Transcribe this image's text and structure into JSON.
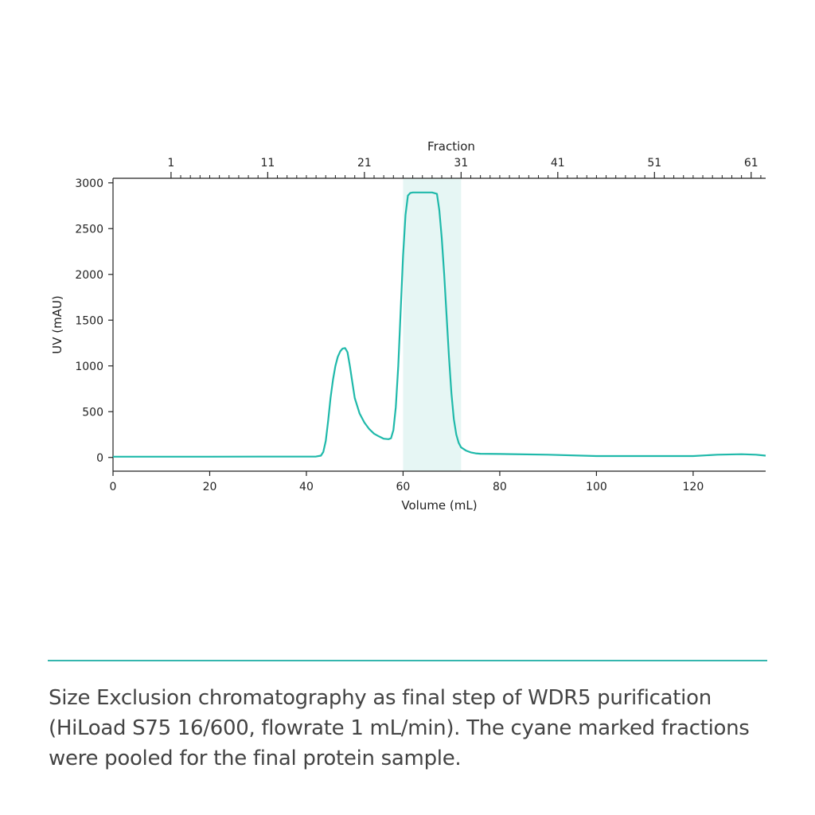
{
  "chart_data": {
    "type": "line",
    "xlabel": "Volume (mL)",
    "ylabel": "UV (mAU)",
    "top_axis_label": "Fraction",
    "xlim": [
      0,
      135
    ],
    "ylim": [
      -150,
      3050
    ],
    "x_ticks": [
      0,
      20,
      40,
      60,
      80,
      100,
      120
    ],
    "y_ticks": [
      0,
      500,
      1000,
      1500,
      2000,
      2500,
      3000
    ],
    "fraction_ticks": [
      {
        "label": "1",
        "volume": 12
      },
      {
        "label": "11",
        "volume": 32
      },
      {
        "label": "21",
        "volume": 52
      },
      {
        "label": "31",
        "volume": 72
      },
      {
        "label": "41",
        "volume": 92
      },
      {
        "label": "51",
        "volume": 112
      },
      {
        "label": "61",
        "volume": 132
      }
    ],
    "fraction_volume_mL": 2,
    "pooled_region": [
      60,
      72
    ],
    "grid": false,
    "colors": {
      "line": "#1fb9aa",
      "pooled": "#e6f6f4",
      "axes": "#222222"
    },
    "series": [
      {
        "x": [
          0,
          10,
          20,
          30,
          40,
          42,
          43,
          43.5,
          44,
          44.5,
          45,
          45.5,
          46,
          46.5,
          47,
          47.5,
          48,
          48.5,
          49,
          49.5,
          50,
          51,
          52,
          53,
          54,
          55,
          56,
          57,
          57.5,
          58,
          58.5,
          59,
          59.5,
          60,
          60.5,
          61,
          61.5,
          62,
          62.5,
          63,
          64,
          65,
          66,
          67,
          67.5,
          68,
          68.5,
          69,
          69.5,
          70,
          70.5,
          71,
          71.5,
          72,
          73,
          74,
          75,
          76,
          80,
          90,
          100,
          110,
          120,
          125,
          130,
          133,
          135
        ],
        "y": [
          8,
          8,
          8,
          9,
          9,
          10,
          20,
          60,
          180,
          400,
          650,
          850,
          1000,
          1100,
          1160,
          1190,
          1195,
          1150,
          1000,
          820,
          650,
          480,
          380,
          310,
          260,
          230,
          205,
          200,
          210,
          300,
          550,
          1000,
          1600,
          2200,
          2650,
          2860,
          2890,
          2895,
          2895,
          2895,
          2895,
          2895,
          2895,
          2880,
          2700,
          2400,
          2000,
          1550,
          1100,
          700,
          420,
          250,
          160,
          110,
          75,
          55,
          45,
          40,
          38,
          30,
          15,
          15,
          15,
          30,
          35,
          30,
          20
        ]
      }
    ]
  },
  "caption": "Size Exclusion chromatography as final step of WDR5 purification (HiLoad S75 16/600, flowrate 1 mL/min). The cyane marked fractions were pooled for the final protein sample."
}
